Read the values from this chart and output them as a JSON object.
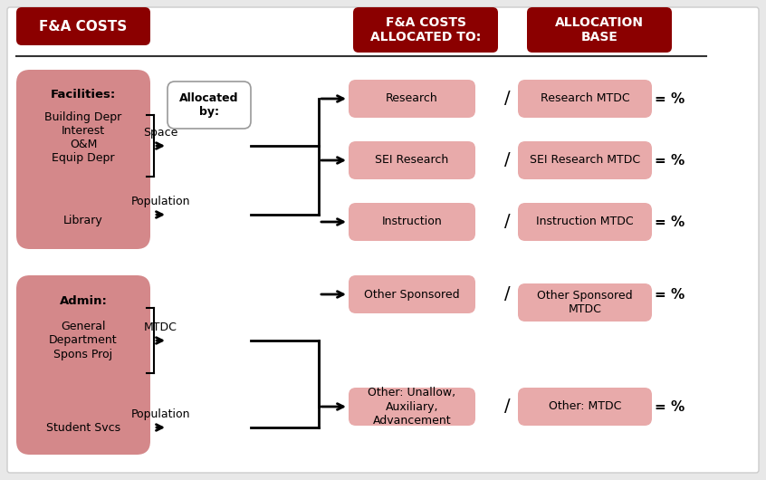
{
  "bg_color": "#e8e8e8",
  "dark_red": "#8B0000",
  "light_pink": "#D4888A",
  "lighter_pink": "#E8AAAA",
  "white": "#FFFFFF",
  "header_text_color": "#FFFFFF",
  "header1": "F&A COSTS",
  "header2": "F&A COSTS\nALLOCATED TO:",
  "header3": "ALLOCATION\nBASE",
  "facilities_label": "Facilities:",
  "facilities_items": "Building Depr\nInterest\nO&M\nEquip Depr",
  "facilities_library": "Library",
  "admin_label": "Admin:",
  "admin_items": "General\nDepartment\nSpons Proj",
  "admin_student": "Student Svcs",
  "alloc_by_box": "Allocated\nby:",
  "middle_boxes": [
    "Research",
    "SEI Research",
    "Instruction",
    "Other Sponsored",
    "Other: Unallow,\nAuxiliary,\nAdvancement"
  ],
  "right_boxes": [
    "Research MTDC",
    "SEI Research MTDC",
    "Instruction MTDC",
    "Other Sponsored\nMTDC",
    "Other: MTDC"
  ],
  "arrow_labels": [
    "Space",
    "Population",
    "MTDC",
    "Population"
  ]
}
